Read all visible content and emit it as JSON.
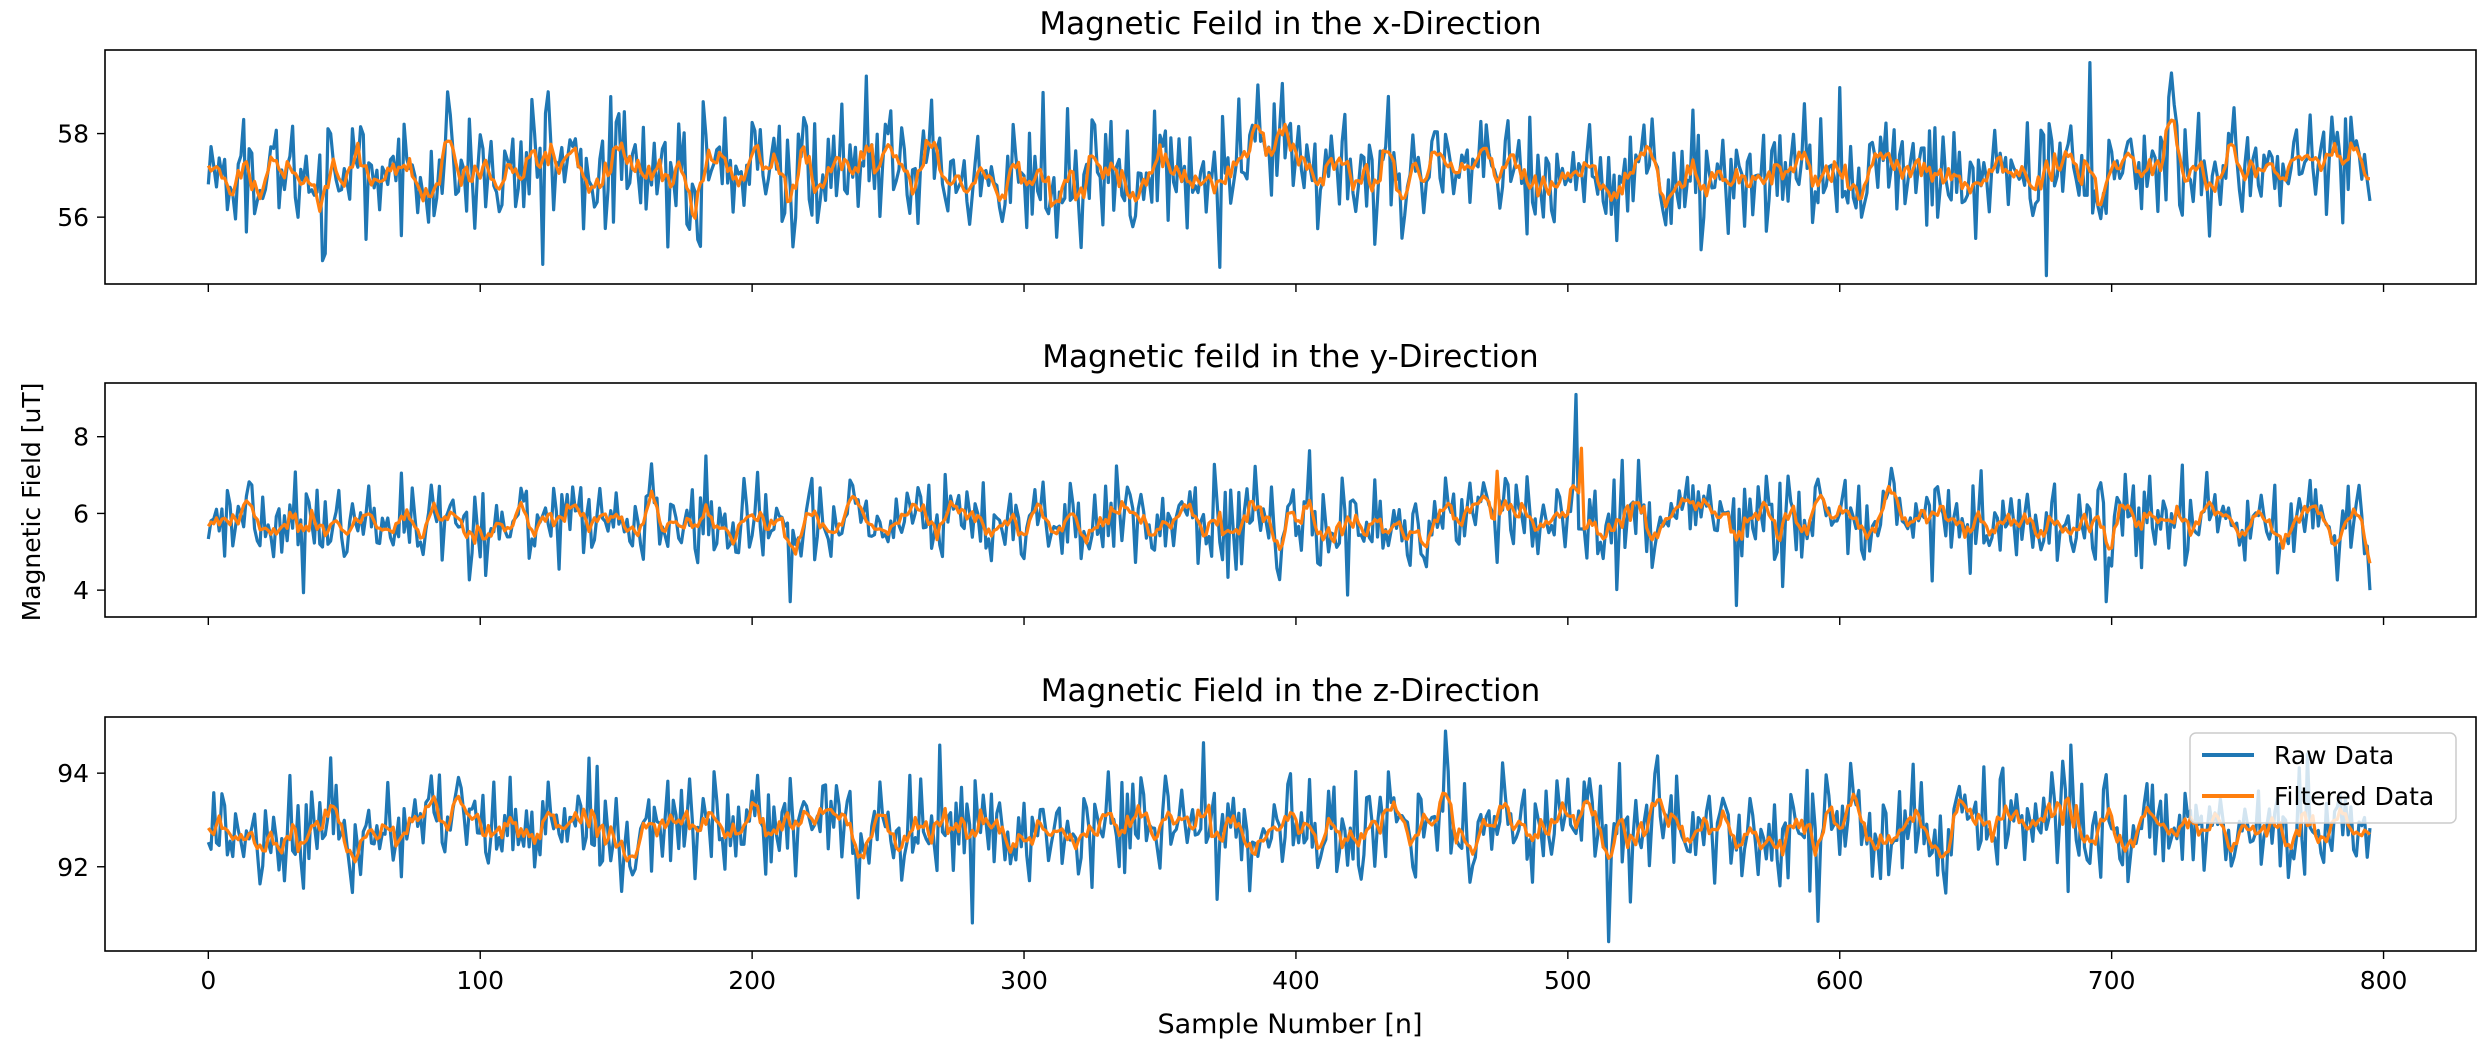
{
  "figure": {
    "xlabel": "Sample Number [n]",
    "ylabel": "Magnetic Field [uT]"
  },
  "legend": {
    "placement": "upper-right of bottom panel",
    "entries": [
      "Raw Data",
      "Filtered Data"
    ]
  },
  "colors": {
    "raw": "#1f77b4",
    "filtered": "#ff7f0e"
  },
  "chart_data": [
    {
      "type": "line",
      "title": "Magnetic Feild in the x-Direction",
      "xlim": [
        -38,
        834
      ],
      "ylim": [
        54.4,
        60.0
      ],
      "x_ticks": [
        0,
        100,
        200,
        300,
        400,
        500,
        600,
        700,
        800
      ],
      "y_ticks": [
        56,
        58
      ],
      "x_tick_labels_visible": false,
      "n_samples": 796,
      "series": [
        {
          "name": "Raw Data",
          "color": "#1f77b4",
          "mean": 57.1,
          "noise_sd": 0.75,
          "min": 54.6,
          "max": 59.7,
          "spikes": [
            [
              372,
              54.8
            ],
            [
              395,
              59.2
            ],
            [
              676,
              54.6
            ],
            [
              692,
              59.7
            ],
            [
              88,
              59.0
            ],
            [
              125,
              59.0
            ]
          ]
        },
        {
          "name": "Filtered Data",
          "color": "#ff7f0e",
          "mean": 57.1,
          "noise_sd": 0.45
        }
      ]
    },
    {
      "type": "line",
      "title": "Magnetic feild in the y-Direction",
      "xlim": [
        -38,
        834
      ],
      "ylim": [
        3.3,
        9.4
      ],
      "x_ticks": [
        0,
        100,
        200,
        300,
        400,
        500,
        600,
        700,
        800
      ],
      "y_ticks": [
        4,
        6,
        8
      ],
      "x_tick_labels_visible": false,
      "n_samples": 796,
      "series": [
        {
          "name": "Raw Data",
          "color": "#1f77b4",
          "mean": 5.8,
          "noise_sd": 0.6,
          "min": 3.6,
          "max": 9.1,
          "spikes": [
            [
              503,
              9.1
            ],
            [
              562,
              3.6
            ],
            [
              214,
              3.7
            ],
            [
              698,
              3.7
            ],
            [
              795,
              4.0
            ]
          ]
        },
        {
          "name": "Filtered Data",
          "color": "#ff7f0e",
          "mean": 5.8,
          "noise_sd": 0.35,
          "spikes": [
            [
              505,
              7.7
            ],
            [
              474,
              7.1
            ]
          ]
        }
      ]
    },
    {
      "type": "line",
      "title": "Magnetic Field in the z-Direction",
      "xlim": [
        -38,
        834
      ],
      "ylim": [
        90.2,
        95.2
      ],
      "x_ticks": [
        0,
        100,
        200,
        300,
        400,
        500,
        600,
        700,
        800
      ],
      "x_tick_labels": [
        "0",
        "100",
        "200",
        "300",
        "400",
        "500",
        "600",
        "700",
        "800"
      ],
      "y_ticks": [
        92,
        94
      ],
      "n_samples": 796,
      "series": [
        {
          "name": "Raw Data",
          "color": "#1f77b4",
          "mean": 92.8,
          "noise_sd": 0.6,
          "min": 90.4,
          "max": 94.9,
          "spikes": [
            [
              455,
              94.9
            ],
            [
              515,
              90.4
            ],
            [
              269,
              94.6
            ],
            [
              685,
              94.6
            ]
          ]
        },
        {
          "name": "Filtered Data",
          "color": "#ff7f0e",
          "mean": 92.8,
          "noise_sd": 0.35
        }
      ]
    }
  ]
}
